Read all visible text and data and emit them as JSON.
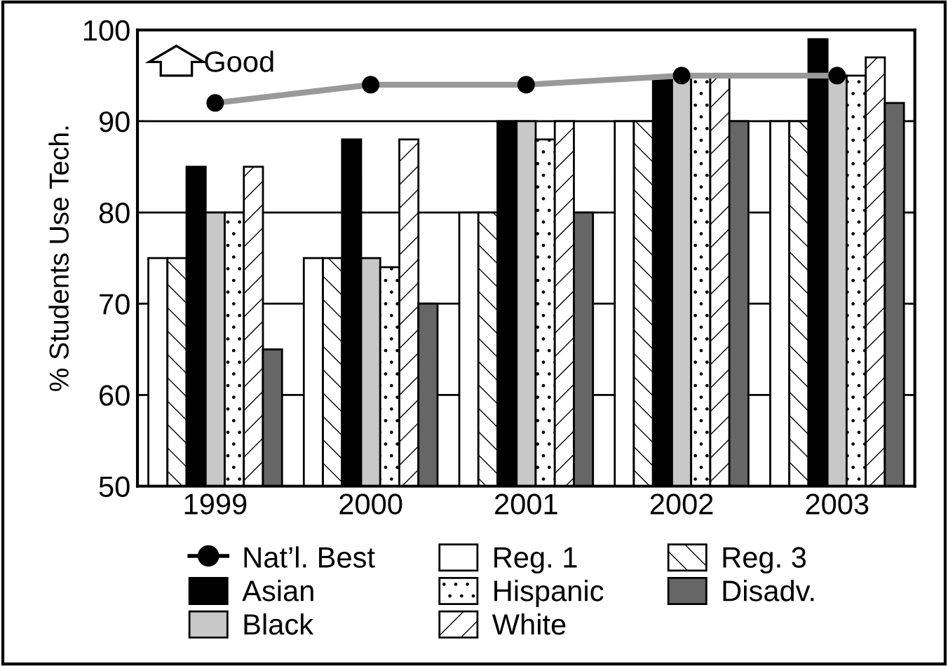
{
  "chart_data": {
    "type": "bar",
    "ylabel": "% Students Use Tech.",
    "categories": [
      "1999",
      "2000",
      "2001",
      "2002",
      "2003"
    ],
    "series": [
      {
        "name": "Nat’l. Best",
        "type": "line",
        "color": "#999999",
        "marker": "circle",
        "values": [
          92,
          94,
          94,
          95,
          95
        ]
      },
      {
        "name": "Reg. 1",
        "color": "#ffffff",
        "values": [
          75,
          75,
          80,
          90,
          90
        ]
      },
      {
        "name": "Reg. 3",
        "color": "#ffffff",
        "values": [
          75,
          75,
          80,
          90,
          90
        ]
      },
      {
        "name": "Asian",
        "color": "#000000",
        "values": [
          85,
          88,
          90,
          94.5,
          99
        ]
      },
      {
        "name": "Black",
        "color": "#c8c8c8",
        "values": [
          80,
          75,
          90,
          95,
          95
        ]
      },
      {
        "name": "Hispanic",
        "color": "#ffffff",
        "values": [
          80,
          74,
          88,
          95,
          95
        ]
      },
      {
        "name": "White",
        "color": "#ffffff",
        "values": [
          85,
          88,
          90,
          95,
          97
        ]
      },
      {
        "name": "Disadv.",
        "color": "#666666",
        "values": [
          65,
          70,
          80,
          90,
          92
        ]
      }
    ],
    "annotations": [
      "Good"
    ],
    "ylim": [
      50,
      100
    ],
    "yticks": [
      50,
      60,
      70,
      80,
      90,
      100
    ],
    "grid": "y",
    "legend": "bottom"
  }
}
